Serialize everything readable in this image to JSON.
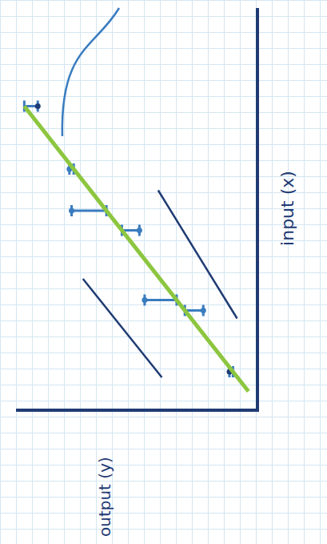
{
  "chart_data": {
    "type": "scatter",
    "x_label": "input (x)",
    "y_label": "output (y)",
    "series": [
      {
        "type": "scatter",
        "color": "#3a7cc0",
        "x": [
          7.55,
          5.98,
          4.94,
          4.45,
          2.71,
          2.45,
          0.92
        ],
        "values": [
          10.0,
          8.55,
          8.45,
          5.34,
          5.1,
          2.41,
          1.21
        ],
        "colors": [
          "#1f3b73",
          "#3a7cc0",
          "#3a7cc0",
          "#3a7cc0",
          "#3a7cc0",
          "#3a7cc0",
          "#1f3b73"
        ]
      },
      {
        "type": "line",
        "color": "#8cc63f",
        "x": [
          0.43,
          7.55
        ],
        "values": [
          0.34,
          10.62
        ]
      },
      {
        "type": "line",
        "color": "#1f3b73",
        "x": [
          3.24,
          0.78
        ],
        "values": [
          7.93,
          4.31
        ]
      },
      {
        "type": "line",
        "color": "#1f3b73",
        "x": [
          5.45,
          2.25
        ],
        "values": [
          4.48,
          0.86
        ]
      }
    ],
    "xlim": [
      0,
      10
    ],
    "ylim": [
      0,
      11
    ],
    "tick_labels": false
  }
}
